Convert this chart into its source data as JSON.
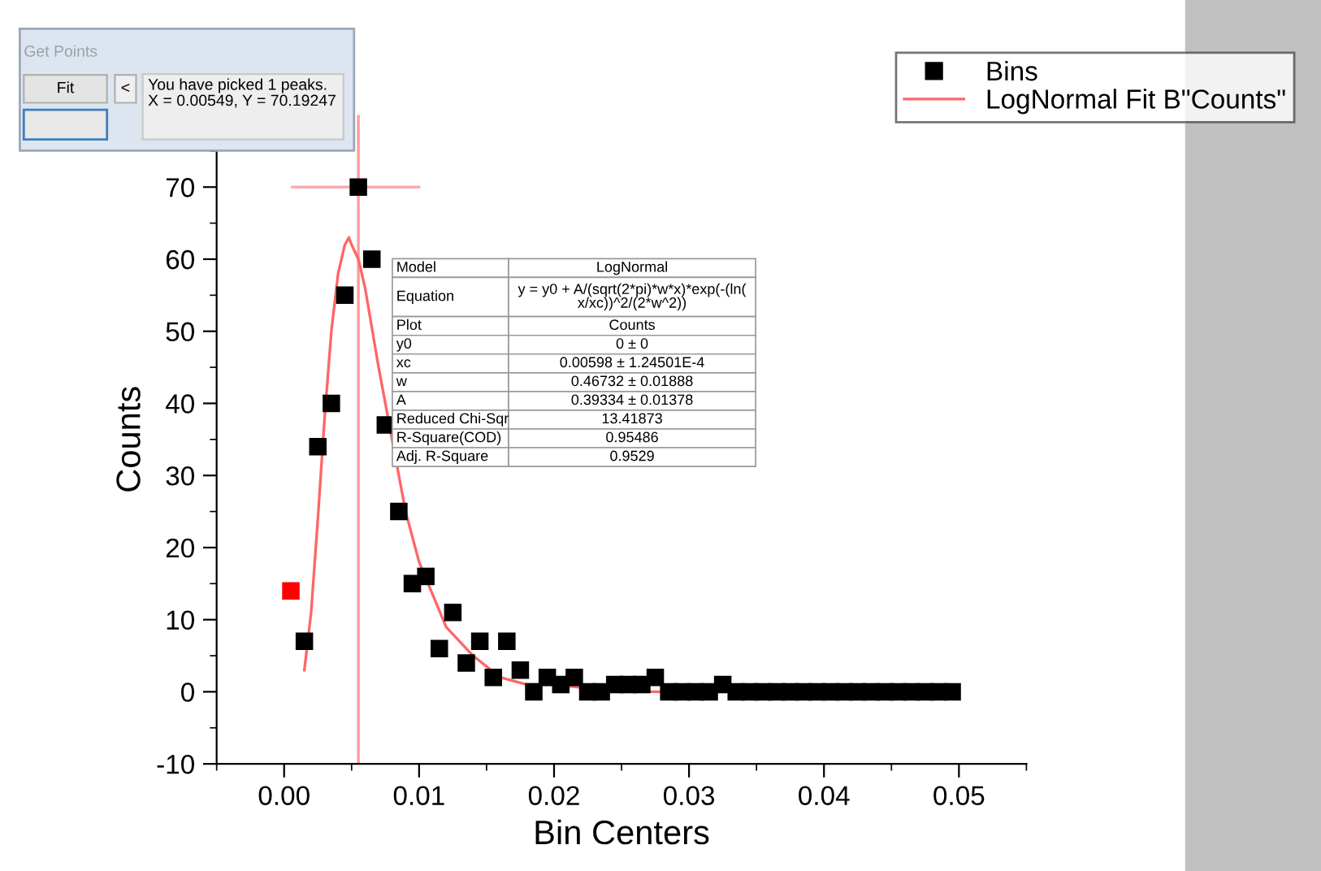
{
  "chart_data": {
    "type": "scatter",
    "xlabel": "Bin Centers",
    "ylabel": "Counts",
    "xlim": [
      -0.005,
      0.055
    ],
    "xticks": [
      {
        "value": 0,
        "label": "0.00"
      },
      0.01,
      0.02,
      0.03,
      0.04,
      0.05
    ],
    "ylim": [
      -10,
      80
    ],
    "yticks": [
      -10,
      0,
      10,
      20,
      30,
      40,
      50,
      60,
      70
    ],
    "grid": false,
    "legend": "top right",
    "ref_lines": [
      {
        "axis": "x",
        "value": 0.0055,
        "color": "#ff9999"
      }
    ],
    "series": [
      {
        "name": "Bins",
        "marker": "square",
        "color": "#000000",
        "x": [
          0.0015,
          0.0025,
          0.0035,
          0.0045,
          0.0055,
          0.0065,
          0.0075,
          0.0085,
          0.0095,
          0.0105,
          0.0115,
          0.0125,
          0.0135,
          0.0145,
          0.0155,
          0.0165,
          0.0175,
          0.0185,
          0.0195,
          0.0205,
          0.0215,
          0.0225,
          0.0235,
          0.0245,
          0.0255,
          0.0265,
          0.0275,
          0.0285,
          0.0295,
          0.0305,
          0.0315,
          0.0325,
          0.0335,
          0.0345,
          0.0355,
          0.0365,
          0.0375,
          0.0385,
          0.0395,
          0.0405,
          0.0415,
          0.0425,
          0.0435,
          0.0445,
          0.0455,
          0.0465,
          0.0475,
          0.0485,
          0.0495
        ],
        "values": [
          7,
          34,
          40,
          55,
          70,
          60,
          37,
          25,
          15,
          16,
          6,
          11,
          4,
          7,
          2,
          7,
          3,
          0,
          2,
          1,
          2,
          0,
          0,
          1,
          1,
          1,
          2,
          0,
          0,
          0,
          0,
          1,
          0,
          0,
          0,
          0,
          0,
          0,
          0,
          0,
          0,
          0,
          0,
          0,
          0,
          0,
          0,
          0,
          0
        ]
      },
      {
        "name": "LogNormal Fit B\"Counts\"",
        "type": "line",
        "marker": "none",
        "color": "#ff6666",
        "x": [
          0.0015,
          0.002,
          0.0025,
          0.003,
          0.0035,
          0.004,
          0.0045,
          0.0048,
          0.005,
          0.0055,
          0.006,
          0.007,
          0.008,
          0.009,
          0.01,
          0.012,
          0.014,
          0.016,
          0.018,
          0.02,
          0.025,
          0.03,
          0.05
        ],
        "values": [
          3,
          11,
          24,
          38,
          50,
          58,
          62,
          63,
          62,
          60,
          56,
          45,
          35,
          25,
          18,
          9,
          5,
          2,
          1,
          1,
          0,
          0,
          0
        ]
      },
      {
        "marker": "square",
        "color": "#ff0000",
        "x": [
          0.0005
        ],
        "values": [
          14
        ]
      },
      {
        "type": "line",
        "marker": "none",
        "color": "#ffaaaa",
        "x": [
          0.0006,
          0.01
        ],
        "values": [
          70,
          70
        ]
      }
    ],
    "annotations": [
      "Get Points",
      "Fit",
      "<",
      "You have picked 1 peaks.\nX = 0.00549, Y = 70.19247",
      "Model",
      "LogNormal",
      "Equation",
      "y = y0 + A/(sqrt(2*pi)*w*x)*exp(-(ln(\nx/xc))^2/(2*w^2))",
      "Plot",
      "Counts",
      "y0",
      "0 ± 0",
      "xc",
      "0.00598 ± 1.24501E-4",
      "w",
      "0.46732 ± 0.01888",
      "A",
      "0.39334 ± 0.01378",
      "Reduced Chi-Sqr",
      "13.41873",
      "R-Square(COD)",
      "0.95486",
      "Adj. R-Square",
      "0.9529"
    ]
  }
}
